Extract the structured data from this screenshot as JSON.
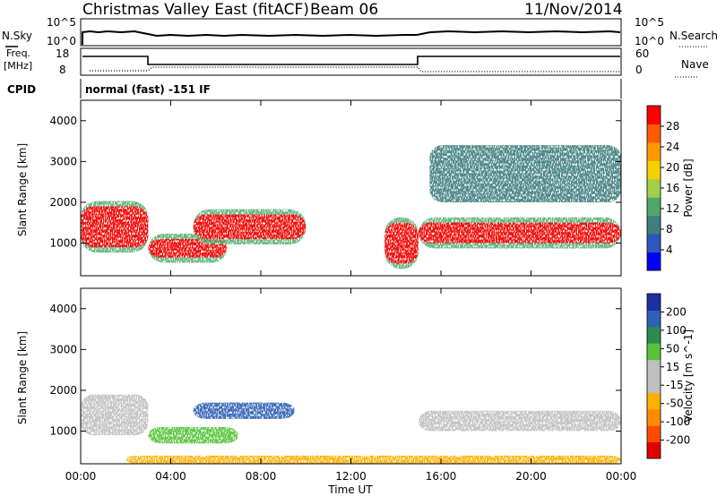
{
  "header": {
    "title": "Christmas Valley East (fitACF)",
    "beam": "Beam 06",
    "date": "11/Nov/2014"
  },
  "panels": {
    "noise": {
      "left_label": "N.Sky",
      "right_label": "N.Search",
      "left_ticks": [
        "10^5",
        "10^0"
      ],
      "right_ticks": [
        "10^5",
        "10^0"
      ]
    },
    "freq": {
      "left_label_line1": "Freq.",
      "left_label_line2": "[MHz]",
      "right_label": "Nave",
      "left_ticks": [
        "18",
        "8"
      ],
      "right_ticks": [
        "60",
        "0"
      ]
    },
    "cpid": {
      "label": "CPID",
      "text": "normal (fast) -151 IF"
    }
  },
  "chart_data": [
    {
      "type": "heatmap",
      "name": "power",
      "ylabel": "Slant Range [km]",
      "ylim": [
        200,
        4500
      ],
      "yticks": [
        "1000",
        "2000",
        "3000",
        "4000"
      ],
      "xlabel": "",
      "colorbar": {
        "label": "Power [dB]",
        "ticks": [
          "4",
          "8",
          "12",
          "16",
          "20",
          "24",
          "28"
        ],
        "colors": [
          "#0000ff",
          "#2f55c0",
          "#3f7f7f",
          "#4fa86a",
          "#9ed04b",
          "#f5d000",
          "#ff9900",
          "#ff5a00",
          "#ff0000"
        ]
      },
      "features": [
        {
          "x": [
            0.0,
            3.0
          ],
          "y": [
            900,
            1900
          ],
          "level": "high"
        },
        {
          "x": [
            3.0,
            6.5
          ],
          "y": [
            650,
            1100
          ],
          "level": "high"
        },
        {
          "x": [
            5.0,
            10.0
          ],
          "y": [
            1100,
            1700
          ],
          "level": "high"
        },
        {
          "x": [
            13.5,
            15.0
          ],
          "y": [
            500,
            1500
          ],
          "level": "high"
        },
        {
          "x": [
            15.0,
            24.0
          ],
          "y": [
            1000,
            1500
          ],
          "level": "high"
        },
        {
          "x": [
            15.5,
            24.0
          ],
          "y": [
            2000,
            3400
          ],
          "level": "low"
        }
      ]
    },
    {
      "type": "heatmap",
      "name": "velocity",
      "ylabel": "Slant Range [km]",
      "ylim": [
        200,
        4500
      ],
      "yticks": [
        "1000",
        "2000",
        "3000",
        "4000"
      ],
      "xlabel": "Time UT",
      "xticks": [
        "00:00",
        "04:00",
        "08:00",
        "12:00",
        "16:00",
        "20:00",
        "00:00"
      ],
      "colorbar": {
        "label": "Velocity [m s^-1]",
        "ticks": [
          "200",
          "100",
          "50",
          "15",
          "-15",
          "-50",
          "-100",
          "-200"
        ],
        "colors": [
          "#1d2fa0",
          "#2f61b6",
          "#2e8a4f",
          "#57c33a",
          "#bfbfbf",
          "#bfbfbf",
          "#ffb000",
          "#ff8c00",
          "#ff4b00",
          "#e00000"
        ]
      },
      "features": [
        {
          "x": [
            0.0,
            3.0
          ],
          "y": [
            900,
            1900
          ],
          "level": "ground"
        },
        {
          "x": [
            3.0,
            7.0
          ],
          "y": [
            700,
            1100
          ],
          "level": "+50"
        },
        {
          "x": [
            5.0,
            9.5
          ],
          "y": [
            1300,
            1700
          ],
          "level": "+100"
        },
        {
          "x": [
            15.0,
            24.0
          ],
          "y": [
            1000,
            1500
          ],
          "level": "ground"
        },
        {
          "x": [
            2.0,
            24.0
          ],
          "y": [
            200,
            400
          ],
          "level": "-50"
        }
      ]
    }
  ]
}
